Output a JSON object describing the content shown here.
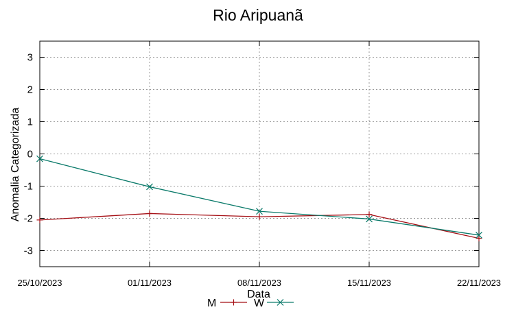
{
  "chart_data": {
    "type": "line",
    "title": "Rio Aripuanã",
    "xlabel": "Data",
    "ylabel": "Anomalia Categorizada",
    "categories": [
      "25/10/2023",
      "01/11/2023",
      "08/11/2023",
      "15/11/2023",
      "22/11/2023"
    ],
    "ylim": [
      -3.5,
      3.5
    ],
    "yticks": [
      3,
      2,
      1,
      0,
      -1,
      -2,
      -3
    ],
    "grid": true,
    "legend_position": "bottom-center",
    "series": [
      {
        "name": "M",
        "color": "#a50f15",
        "marker": "plus",
        "values": [
          -2.05,
          -1.85,
          -1.95,
          -1.88,
          -2.62
        ]
      },
      {
        "name": "W",
        "color": "#0a7a6a",
        "marker": "x",
        "values": [
          -0.15,
          -1.02,
          -1.78,
          -2.02,
          -2.52
        ]
      }
    ]
  }
}
